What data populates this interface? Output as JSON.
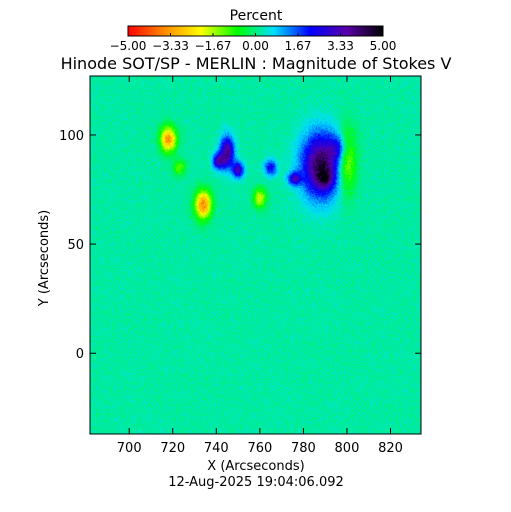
{
  "chart_data": {
    "type": "heatmap",
    "title": "Hinode SOT/SP - MERLIN : Magnitude of Stokes V",
    "colorbar": {
      "label": "Percent",
      "ticks": [
        "-5.00",
        "-3.33",
        "-1.67",
        "0.00",
        "1.67",
        "3.33",
        "5.00"
      ],
      "range": [
        -5,
        5
      ],
      "colormap": [
        "#ff0000",
        "#ff8a00",
        "#ffff00",
        "#00ff00",
        "#00e0ff",
        "#0000ff",
        "#5a00aa",
        "#000000"
      ]
    },
    "xlabel": "X (Arcseconds)",
    "ylabel": "Y (Arcseconds)",
    "xlim": [
      682,
      834
    ],
    "ylim": [
      -37,
      127
    ],
    "xticks": [
      700,
      720,
      740,
      760,
      780,
      800,
      820
    ],
    "yticks": [
      0,
      50,
      100
    ],
    "background_value": 0.2,
    "features": [
      {
        "x": 718,
        "y": 98,
        "sx": 2.5,
        "sy": 4.0,
        "value": -3.6
      },
      {
        "x": 734,
        "y": 68,
        "sx": 2.6,
        "sy": 4.5,
        "value": -3.8
      },
      {
        "x": 760,
        "y": 71,
        "sx": 2.0,
        "sy": 3.0,
        "value": -2.2
      },
      {
        "x": 723,
        "y": 85,
        "sx": 2.0,
        "sy": 2.5,
        "value": -1.4
      },
      {
        "x": 745,
        "y": 92,
        "sx": 2.2,
        "sy": 5.0,
        "value": 3.6
      },
      {
        "x": 750,
        "y": 84,
        "sx": 1.8,
        "sy": 2.5,
        "value": 3.0
      },
      {
        "x": 741,
        "y": 88,
        "sx": 1.8,
        "sy": 2.5,
        "value": 3.0
      },
      {
        "x": 765,
        "y": 85,
        "sx": 2.0,
        "sy": 2.5,
        "value": 2.2
      },
      {
        "x": 788,
        "y": 86,
        "sx": 6.0,
        "sy": 10.0,
        "value": 4.2
      },
      {
        "x": 790,
        "y": 80,
        "sx": 2.6,
        "sy": 3.0,
        "value": 1.6
      },
      {
        "x": 776,
        "y": 80,
        "sx": 2.0,
        "sy": 2.0,
        "value": 2.8
      },
      {
        "x": 796,
        "y": 94,
        "sx": 3.0,
        "sy": 4.0,
        "value": 1.6
      },
      {
        "x": 800,
        "y": 88,
        "sx": 3.0,
        "sy": 10.0,
        "value": -2.0
      }
    ]
  },
  "footer": {
    "timestamp": "12-Aug-2025 19:04:06.092"
  }
}
